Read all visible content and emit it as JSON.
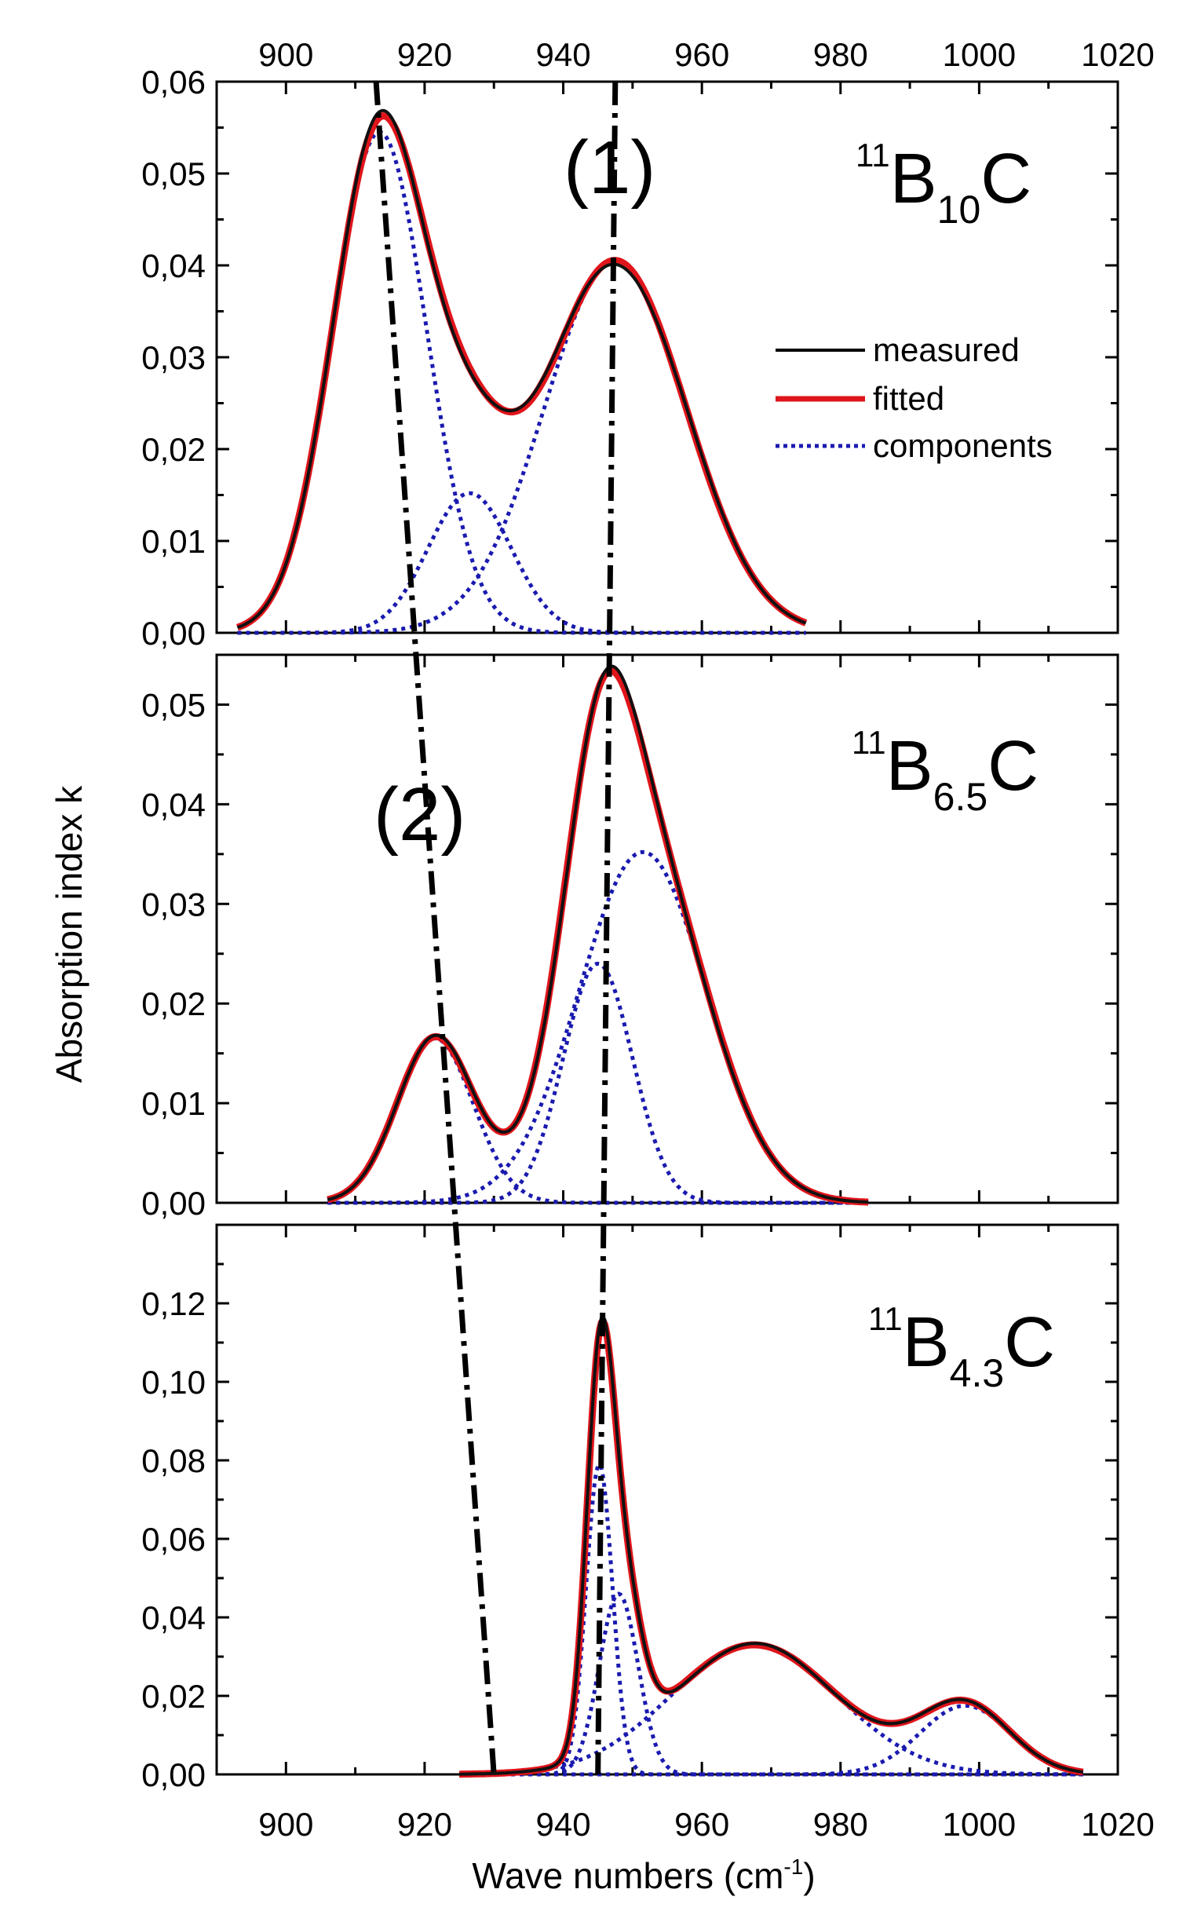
{
  "chart_data": {
    "type": "line",
    "x_axis": {
      "label": "Wave numbers (cm",
      "label_sup": "-1",
      "label_end": ")",
      "range": [
        890,
        1020
      ],
      "ticks": [
        900,
        920,
        940,
        960,
        980,
        1000,
        1020
      ]
    },
    "y_axis_label": "Absorption index k",
    "legend": {
      "placement": "right of top panel",
      "entries": [
        {
          "name": "measured",
          "color": "#000000",
          "style": "solid"
        },
        {
          "name": "fitted",
          "color": "#e0151b",
          "style": "solid"
        },
        {
          "name": "components",
          "color": "#1a1ab0",
          "style": "dotted"
        }
      ]
    },
    "annotations": [
      {
        "text": "(1)",
        "note": "dash-dot line near 946-947 cm-1 through all panels"
      },
      {
        "text": "(2)",
        "note": "dash-dot line from 913 (top) to 930 (bottom)"
      }
    ],
    "guide_lines": [
      {
        "name": "line-1",
        "points": [
          [
            947.5,
            0.06,
            0
          ],
          [
            945.0,
            0.0,
            2
          ]
        ]
      },
      {
        "name": "line-2",
        "points": [
          [
            913.0,
            0.06,
            0
          ],
          [
            930.0,
            0.0,
            2
          ]
        ]
      }
    ],
    "panels": [
      {
        "sample": {
          "sup": "11",
          "base": "B",
          "sub": "10",
          "tail": "C"
        },
        "ylim": [
          0,
          0.06
        ],
        "yticks": [
          "0,00",
          "0,01",
          "0,02",
          "0,03",
          "0,04",
          "0,05",
          "0,06"
        ],
        "ytick_values": [
          0,
          0.01,
          0.02,
          0.03,
          0.04,
          0.05,
          0.06
        ],
        "xrange": [
          893,
          975
        ],
        "components": [
          {
            "center": 913.5,
            "amplitude": 0.0545,
            "width": 6.8
          },
          {
            "center": 926.5,
            "amplitude": 0.0152,
            "width": 6.0
          },
          {
            "center": 947.5,
            "amplitude": 0.0405,
            "width": 10.2
          }
        ]
      },
      {
        "sample": {
          "sup": "11",
          "base": "B",
          "sub": "6.5",
          "tail": "C"
        },
        "ylim": [
          0,
          0.055
        ],
        "yticks": [
          "0,00",
          "0,01",
          "0,02",
          "0,03",
          "0,04",
          "0,05"
        ],
        "ytick_values": [
          0,
          0.01,
          0.02,
          0.03,
          0.04,
          0.05
        ],
        "xrange": [
          906,
          984
        ],
        "components": [
          {
            "center": 921.5,
            "amplitude": 0.0165,
            "width": 5.5
          },
          {
            "center": 945.0,
            "amplitude": 0.024,
            "width": 5.0
          },
          {
            "center": 951.5,
            "amplitude": 0.0352,
            "width": 9.2
          }
        ]
      },
      {
        "sample": {
          "sup": "11",
          "base": "B",
          "sub": "4.3",
          "tail": "C"
        },
        "ylim": [
          0,
          0.14
        ],
        "yticks": [
          "0,00",
          "0,02",
          "0,04",
          "0,06",
          "0,08",
          "0,10",
          "0,12"
        ],
        "ytick_values": [
          0,
          0.02,
          0.04,
          0.06,
          0.08,
          0.1,
          0.12
        ],
        "xrange": [
          925,
          1015
        ],
        "components": [
          {
            "center": 945.2,
            "amplitude": 0.079,
            "width": 1.9
          },
          {
            "center": 948.0,
            "amplitude": 0.046,
            "width": 2.8
          },
          {
            "center": 967.5,
            "amplitude": 0.033,
            "width": 12.0
          },
          {
            "center": 998.0,
            "amplitude": 0.0175,
            "width": 6.5
          }
        ]
      }
    ]
  }
}
